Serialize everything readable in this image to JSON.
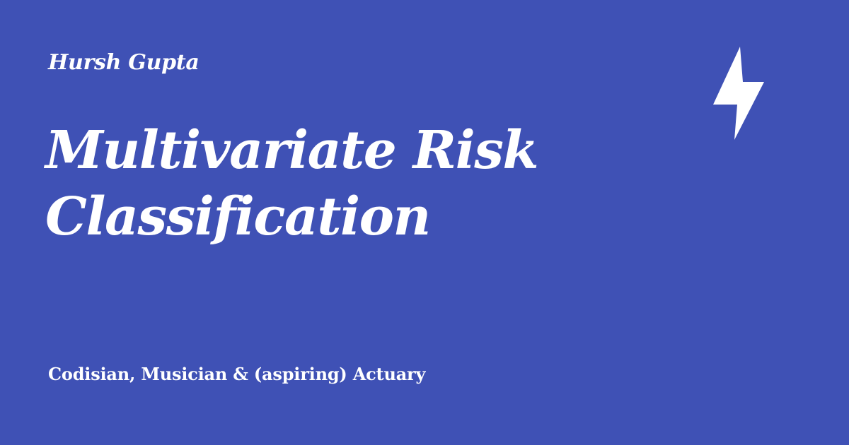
{
  "card": {
    "background_color": "#3f51b5",
    "text_color": "#ffffff",
    "author": "Hursh Gupta",
    "title": "Multivariate Risk Classification",
    "tagline": "Codisian, Musician & (aspiring) Actuary",
    "logo_icon": "lightning-bolt-icon"
  }
}
